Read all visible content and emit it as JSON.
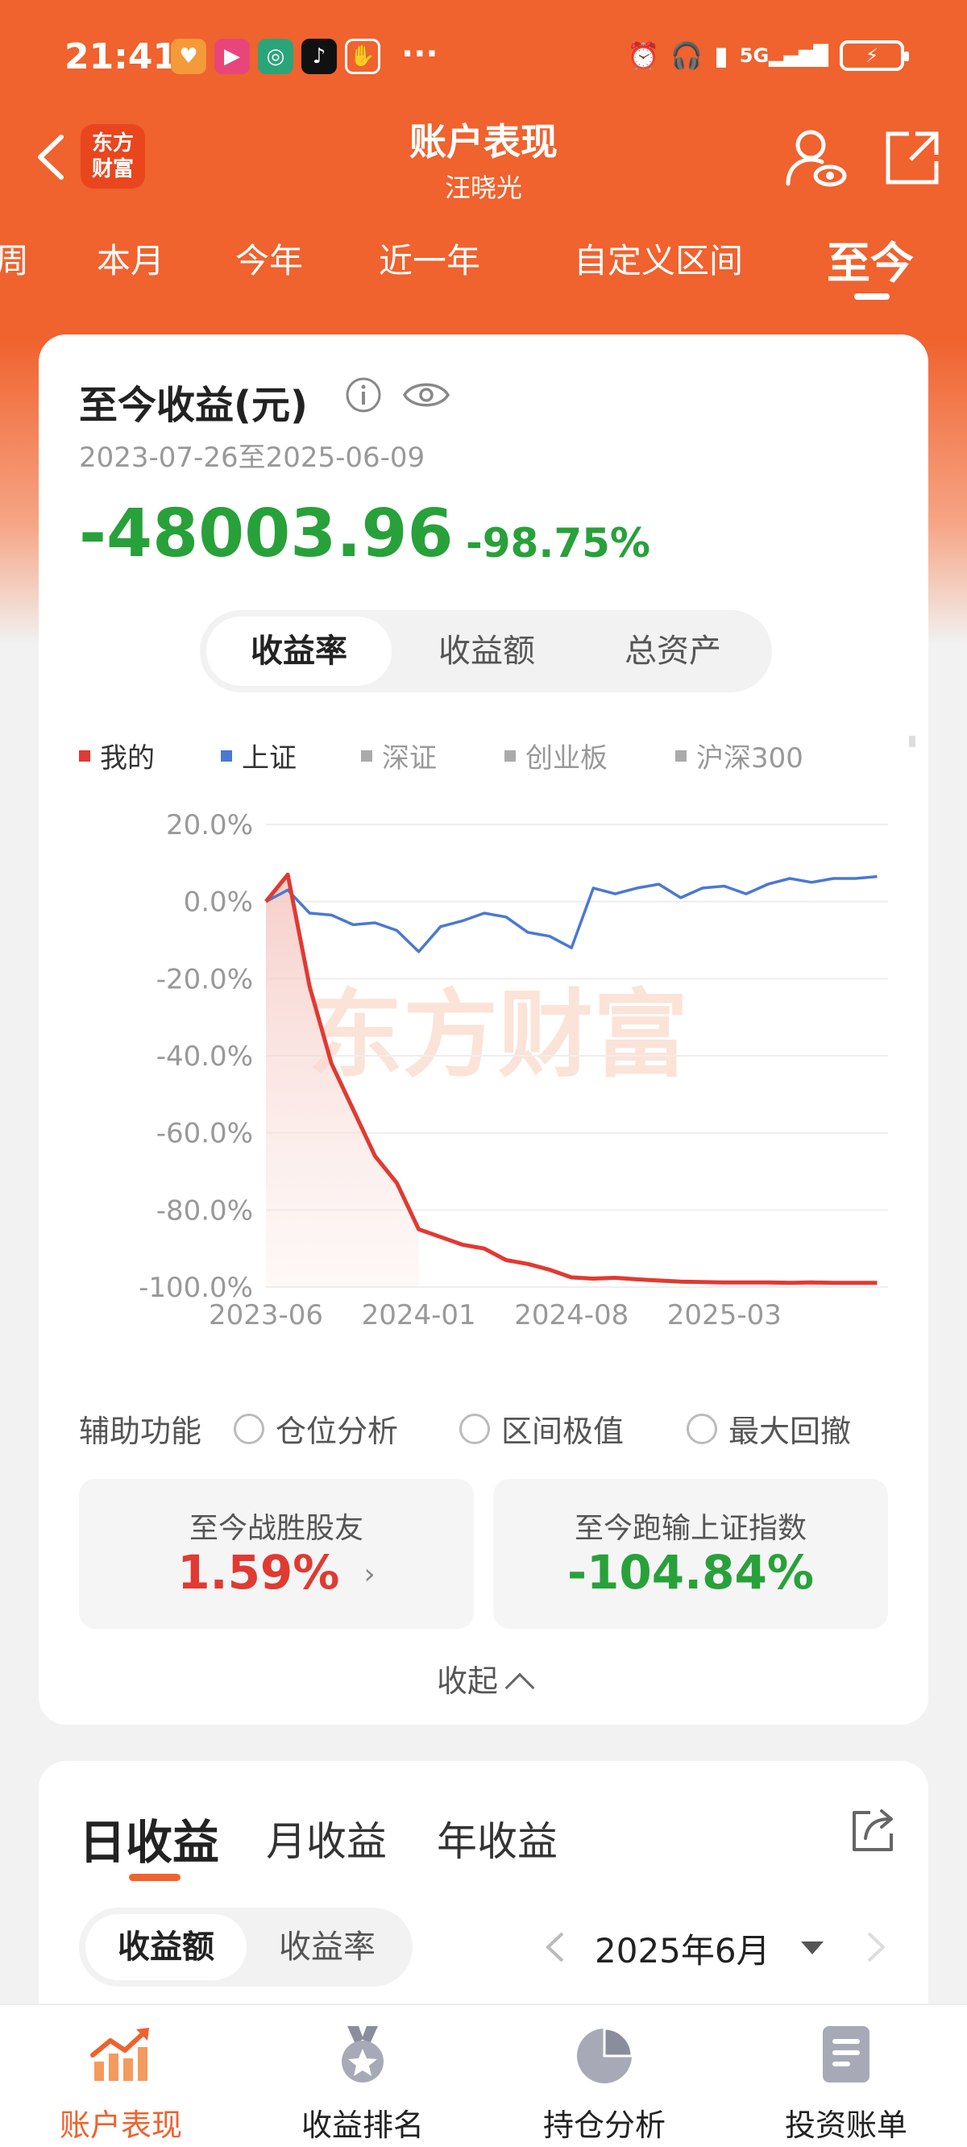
{
  "status_bar": {
    "time": "21:41",
    "signal": "5G",
    "overflow": "···"
  },
  "nav": {
    "title": "账户表现",
    "subtitle": "汪晓光",
    "logo_line1": "东方",
    "logo_line2": "财富"
  },
  "period_tabs": [
    {
      "label": "周",
      "active": false
    },
    {
      "label": "本月",
      "active": false
    },
    {
      "label": "今年",
      "active": false
    },
    {
      "label": "近一年",
      "active": false
    },
    {
      "label": "自定义区间",
      "active": false
    },
    {
      "label": "至今",
      "active": true
    }
  ],
  "summary": {
    "title": "至今收益(元)",
    "date_range": "2023-07-26至2025-06-09",
    "amount": "-48003.96",
    "percent": "-98.75%"
  },
  "metric_tabs": [
    {
      "label": "收益率",
      "active": true
    },
    {
      "label": "收益额",
      "active": false
    },
    {
      "label": "总资产",
      "active": false
    }
  ],
  "legend": [
    {
      "label": "我的",
      "color": "#e03a32"
    },
    {
      "label": "上证",
      "color": "#4a78d4"
    },
    {
      "label": "深证",
      "color": "#aaaaaa"
    },
    {
      "label": "创业板",
      "color": "#aaaaaa"
    },
    {
      "label": "沪深300",
      "color": "#aaaaaa"
    }
  ],
  "chart_data": {
    "type": "line",
    "xlabel": "",
    "ylabel": "",
    "y_ticks": [
      "20.0%",
      "0.0%",
      "-20.0%",
      "-40.0%",
      "-60.0%",
      "-80.0%",
      "-100.0%"
    ],
    "ylim": [
      -100,
      20
    ],
    "x_ticks": [
      "2023-06",
      "2024-01",
      "2024-08",
      "2025-03"
    ],
    "x_range_months": [
      0,
      28.5
    ],
    "grid": true,
    "watermark": "东方财富",
    "series": [
      {
        "name": "我的",
        "color": "#e03a32",
        "points": [
          [
            0,
            0
          ],
          [
            1,
            7
          ],
          [
            2,
            -22
          ],
          [
            3,
            -42
          ],
          [
            4,
            -54
          ],
          [
            5,
            -66
          ],
          [
            6,
            -73
          ],
          [
            7,
            -85
          ],
          [
            8,
            -87
          ],
          [
            9,
            -89
          ],
          [
            10,
            -90
          ],
          [
            11,
            -93
          ],
          [
            12,
            -94
          ],
          [
            13,
            -95.5
          ],
          [
            14,
            -97.5
          ],
          [
            15,
            -97.8
          ],
          [
            16,
            -97.6
          ],
          [
            17,
            -98
          ],
          [
            18,
            -98.3
          ],
          [
            19,
            -98.6
          ],
          [
            20,
            -98.7
          ],
          [
            21,
            -98.8
          ],
          [
            22,
            -98.8
          ],
          [
            23,
            -98.8
          ],
          [
            24,
            -98.9
          ],
          [
            25,
            -98.8
          ],
          [
            26,
            -98.9
          ],
          [
            27,
            -98.9
          ],
          [
            28,
            -98.9
          ]
        ]
      },
      {
        "name": "上证",
        "color": "#4a78d4",
        "points": [
          [
            0,
            0
          ],
          [
            1,
            3
          ],
          [
            2,
            -3
          ],
          [
            3,
            -3.5
          ],
          [
            4,
            -6
          ],
          [
            5,
            -5.5
          ],
          [
            6,
            -7.5
          ],
          [
            7,
            -13
          ],
          [
            8,
            -6.5
          ],
          [
            9,
            -5
          ],
          [
            10,
            -3
          ],
          [
            11,
            -4
          ],
          [
            12,
            -8
          ],
          [
            13,
            -9
          ],
          [
            14,
            -12
          ],
          [
            15,
            3.5
          ],
          [
            16,
            2
          ],
          [
            17,
            3.5
          ],
          [
            18,
            4.5
          ],
          [
            19,
            1
          ],
          [
            20,
            3.5
          ],
          [
            21,
            4
          ],
          [
            22,
            2
          ],
          [
            23,
            4.5
          ],
          [
            24,
            6
          ],
          [
            25,
            5
          ],
          [
            26,
            6
          ],
          [
            27,
            6
          ],
          [
            28,
            6.5
          ]
        ]
      }
    ]
  },
  "assist": {
    "label": "辅助功能",
    "options": [
      "仓位分析",
      "区间极值",
      "最大回撤"
    ]
  },
  "stats": [
    {
      "label": "至今战胜股友",
      "value": "1.59%",
      "color": "#e03a32"
    },
    {
      "label": "至今跑输上证指数",
      "value": "-104.84%",
      "color": "#28a13a"
    }
  ],
  "collapse_label": "收起",
  "returns_section": {
    "tabs": [
      {
        "label": "日收益",
        "active": true
      },
      {
        "label": "月收益",
        "active": false
      },
      {
        "label": "年收益",
        "active": false
      }
    ],
    "toggle": [
      {
        "label": "收益额",
        "active": true
      },
      {
        "label": "收益率",
        "active": false
      }
    ],
    "month": "2025年6月"
  },
  "bottom_nav": [
    {
      "label": "账户表现",
      "icon": "chart-trend-icon",
      "active": true
    },
    {
      "label": "收益排名",
      "icon": "medal-icon",
      "active": false
    },
    {
      "label": "持仓分析",
      "icon": "pie-chart-icon",
      "active": false
    },
    {
      "label": "投资账单",
      "icon": "document-icon",
      "active": false
    }
  ]
}
